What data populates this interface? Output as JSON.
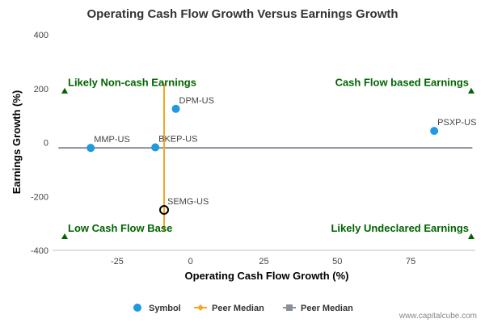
{
  "chart_data": {
    "type": "scatter",
    "title": "Operating Cash Flow Growth Versus Earnings Growth",
    "xlabel": "Operating Cash Flow Growth (%)",
    "ylabel": "Earnings Growth (%)",
    "xlim": [
      -47,
      97
    ],
    "ylim": [
      -400,
      400
    ],
    "xticks": [
      -25,
      0,
      25,
      50,
      75
    ],
    "yticks": [
      400,
      200,
      0,
      -200,
      -400
    ],
    "grid": false,
    "legend_position": "bottom",
    "points": [
      {
        "label": "DPM-US",
        "x": -5,
        "y": 125,
        "style": "symbol"
      },
      {
        "label": "PSXP-US",
        "x": 83,
        "y": 43,
        "style": "symbol"
      },
      {
        "label": "MMP-US",
        "x": -34,
        "y": -20,
        "style": "symbol"
      },
      {
        "label": "BKEP-US",
        "x": -12,
        "y": -18,
        "style": "symbol"
      },
      {
        "label": "SEMG-US",
        "x": -9,
        "y": -250,
        "style": "highlight"
      }
    ],
    "peer_median": {
      "x": -9,
      "y": -20,
      "vertical_y_range": [
        -330,
        220
      ],
      "horizontal_x_range": [
        -45,
        96
      ]
    },
    "quadrants": [
      {
        "label": "Likely Non-cash Earnings",
        "position": "top-left",
        "y": 215
      },
      {
        "label": "Cash Flow based Earnings",
        "position": "top-right",
        "y": 215
      },
      {
        "label": "Low Cash Flow Base",
        "position": "bottom-left",
        "y": -325
      },
      {
        "label": "Likely Undeclared Earnings",
        "position": "bottom-right",
        "y": -325
      }
    ],
    "legend": [
      {
        "label": "Symbol",
        "marker": "circle",
        "color": "#1f9ae0"
      },
      {
        "label": "Peer Median",
        "marker": "diamond-line",
        "color": "#f5a623"
      },
      {
        "label": "Peer Median",
        "marker": "square-line",
        "color": "#8a9199"
      }
    ],
    "colors": {
      "symbol": "#1f9ae0",
      "peer_median_vertical": "#f5a623",
      "peer_median_horizontal": "#8a9199",
      "quadrant_text": "#006400",
      "highlight_stroke": "#000000"
    }
  },
  "watermark": "www.capitalcube.com"
}
